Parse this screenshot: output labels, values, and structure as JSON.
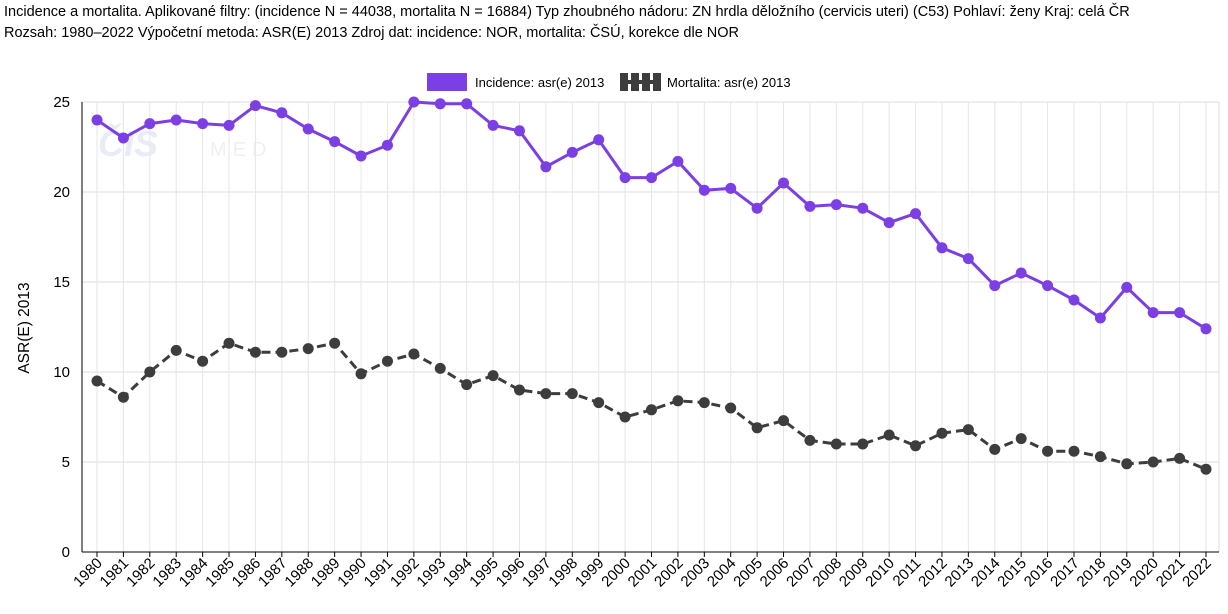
{
  "header": {
    "line1": "Incidence a mortalita. Aplikované filtry: (incidence N = 44038, mortalita N = 16884) Typ zhoubného nádoru: ZN hrdla děložního (cervicis uteri) (C53) Pohlaví: ženy Kraj: celá ČR",
    "line2": "Rozsah: 1980–2022 Výpočetní metoda: ASR(E) 2013 Zdroj dat: incidence: NOR, mortalita: ČSÚ, korekce dle NOR"
  },
  "watermark": {
    "logo": "ČIS",
    "text": "MED"
  },
  "chart_data": {
    "type": "line",
    "x": [
      "1980",
      "1981",
      "1982",
      "1983",
      "1984",
      "1985",
      "1986",
      "1987",
      "1988",
      "1989",
      "1990",
      "1991",
      "1992",
      "1993",
      "1994",
      "1995",
      "1996",
      "1997",
      "1998",
      "1999",
      "2000",
      "2001",
      "2002",
      "2003",
      "2004",
      "2005",
      "2006",
      "2007",
      "2008",
      "2009",
      "2010",
      "2011",
      "2012",
      "2013",
      "2014",
      "2015",
      "2016",
      "2017",
      "2018",
      "2019",
      "2020",
      "2021",
      "2022"
    ],
    "series": [
      {
        "name": "Incidence: asr(e) 2013",
        "color": "#7b3fe4",
        "style": "solid",
        "values": [
          24.0,
          23.0,
          23.8,
          24.0,
          23.8,
          23.7,
          24.8,
          24.4,
          23.5,
          22.8,
          22.0,
          22.6,
          25.0,
          24.9,
          24.9,
          23.7,
          23.4,
          21.4,
          22.2,
          22.9,
          20.8,
          20.8,
          21.7,
          20.1,
          20.2,
          19.1,
          20.5,
          19.2,
          19.3,
          19.1,
          18.3,
          18.8,
          16.9,
          16.3,
          14.8,
          15.5,
          14.8,
          14.0,
          13.0,
          14.7,
          13.3,
          13.3,
          12.4
        ]
      },
      {
        "name": "Mortalita: asr(e) 2013",
        "color": "#3d3d3d",
        "style": "dashed",
        "values": [
          9.5,
          8.6,
          10.0,
          11.2,
          10.6,
          11.6,
          11.1,
          11.1,
          11.3,
          11.6,
          9.9,
          10.6,
          11.0,
          10.2,
          9.3,
          9.8,
          9.0,
          8.8,
          8.8,
          8.3,
          7.5,
          7.9,
          8.4,
          8.3,
          8.0,
          6.9,
          7.3,
          6.2,
          6.0,
          6.0,
          6.5,
          5.9,
          6.6,
          6.8,
          5.7,
          6.3,
          5.6,
          5.6,
          5.3,
          4.9,
          5.0,
          5.2,
          4.6
        ]
      }
    ],
    "ylabel": "ASR(E) 2013",
    "xlabel": "",
    "ylim": [
      0,
      25
    ],
    "yticks": [
      0,
      5,
      10,
      15,
      20,
      25
    ],
    "grid": true,
    "legend": "top-center"
  }
}
